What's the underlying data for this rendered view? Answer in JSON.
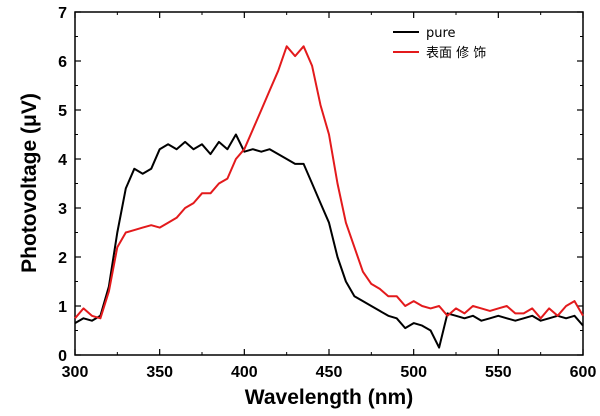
{
  "chart_data": {
    "type": "line",
    "xlabel": "Wavelength (nm)",
    "ylabel": "Photovoltage (μV)",
    "xlim": [
      300,
      600
    ],
    "ylim": [
      0,
      7
    ],
    "xticks": [
      "300",
      "350",
      "400",
      "450",
      "500",
      "550",
      "600"
    ],
    "yticks": [
      "0",
      "1",
      "2",
      "3",
      "4",
      "5",
      "6",
      "7"
    ],
    "legend_position": "top-right",
    "grid": false,
    "series": [
      {
        "name": "pure",
        "color": "#000000",
        "x": [
          300,
          305,
          310,
          315,
          320,
          325,
          330,
          335,
          340,
          345,
          350,
          355,
          360,
          365,
          370,
          375,
          380,
          385,
          390,
          395,
          400,
          405,
          410,
          415,
          420,
          425,
          430,
          435,
          440,
          445,
          450,
          455,
          460,
          465,
          470,
          475,
          480,
          485,
          490,
          495,
          500,
          505,
          510,
          515,
          520,
          525,
          530,
          535,
          540,
          545,
          550,
          555,
          560,
          565,
          570,
          575,
          580,
          585,
          590,
          595,
          600
        ],
        "y": [
          0.65,
          0.75,
          0.7,
          0.8,
          1.4,
          2.5,
          3.4,
          3.8,
          3.7,
          3.8,
          4.2,
          4.3,
          4.2,
          4.35,
          4.2,
          4.3,
          4.1,
          4.35,
          4.2,
          4.5,
          4.15,
          4.2,
          4.15,
          4.2,
          4.1,
          4.0,
          3.9,
          3.9,
          3.5,
          3.1,
          2.7,
          2.0,
          1.5,
          1.2,
          1.1,
          1.0,
          0.9,
          0.8,
          0.75,
          0.55,
          0.65,
          0.6,
          0.5,
          0.15,
          0.85,
          0.8,
          0.75,
          0.8,
          0.7,
          0.75,
          0.8,
          0.75,
          0.7,
          0.75,
          0.8,
          0.7,
          0.75,
          0.8,
          0.75,
          0.8,
          0.6
        ]
      },
      {
        "name": "表面 修 饰",
        "color": "#e31a1c",
        "x": [
          300,
          305,
          310,
          315,
          320,
          325,
          330,
          335,
          340,
          345,
          350,
          355,
          360,
          365,
          370,
          375,
          380,
          385,
          390,
          395,
          400,
          405,
          410,
          415,
          420,
          425,
          430,
          435,
          440,
          445,
          450,
          455,
          460,
          465,
          470,
          475,
          480,
          485,
          490,
          495,
          500,
          505,
          510,
          515,
          520,
          525,
          530,
          535,
          540,
          545,
          550,
          555,
          560,
          565,
          570,
          575,
          580,
          585,
          590,
          595,
          600
        ],
        "y": [
          0.75,
          0.95,
          0.8,
          0.75,
          1.3,
          2.2,
          2.5,
          2.55,
          2.6,
          2.65,
          2.6,
          2.7,
          2.8,
          3.0,
          3.1,
          3.3,
          3.3,
          3.5,
          3.6,
          4.0,
          4.2,
          4.6,
          5.0,
          5.4,
          5.8,
          6.3,
          6.1,
          6.3,
          5.9,
          5.1,
          4.5,
          3.5,
          2.7,
          2.2,
          1.7,
          1.45,
          1.35,
          1.2,
          1.2,
          1.0,
          1.1,
          1.0,
          0.95,
          1.0,
          0.8,
          0.95,
          0.85,
          1.0,
          0.95,
          0.9,
          0.95,
          1.0,
          0.85,
          0.85,
          0.95,
          0.75,
          0.95,
          0.8,
          1.0,
          1.1,
          0.8
        ]
      }
    ]
  }
}
